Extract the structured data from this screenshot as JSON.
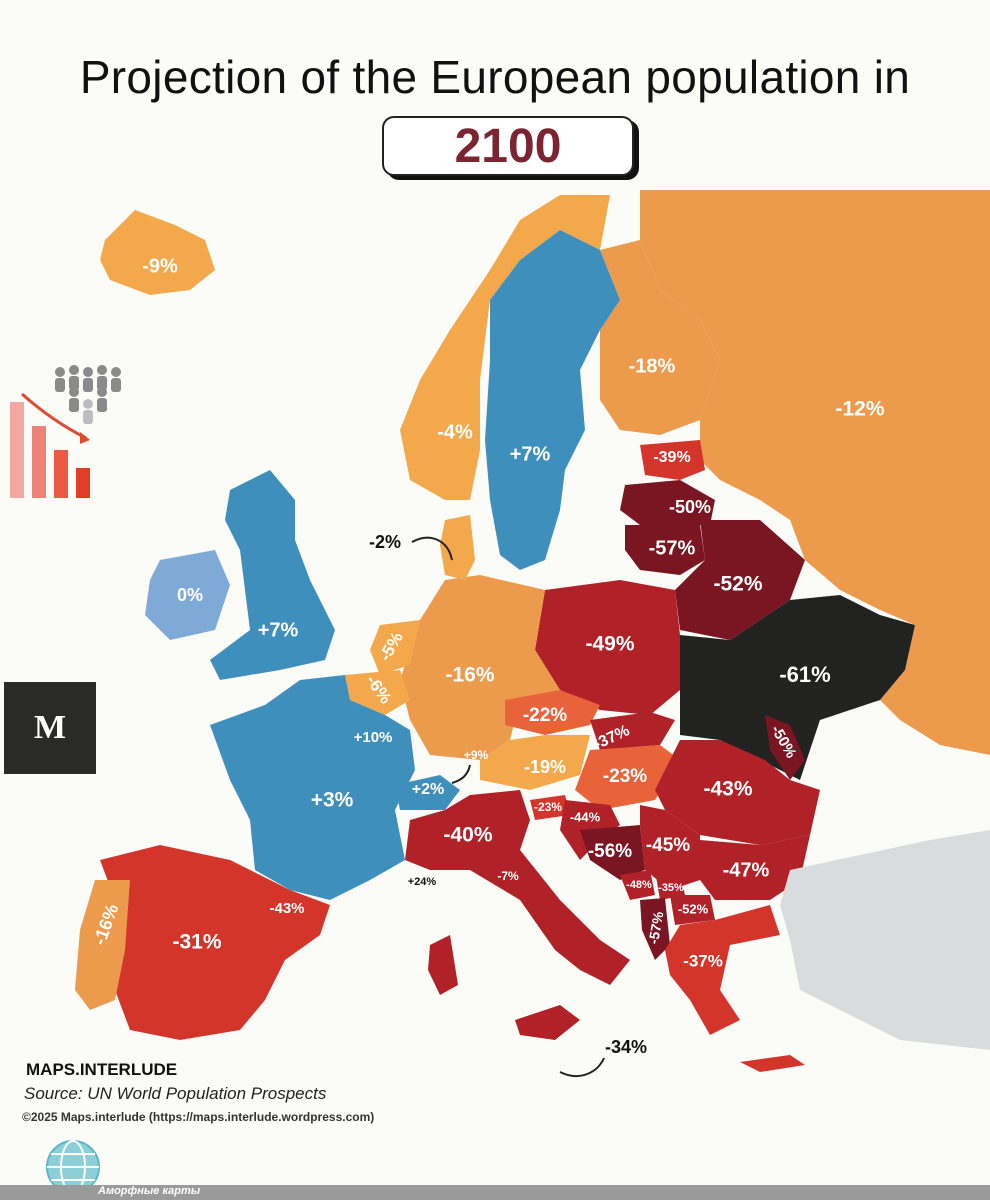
{
  "header": {
    "title": "Projection of the European population in",
    "year": "2100"
  },
  "colors": {
    "sea": "#fbfbf8",
    "blue_strong": "#3f8fbd",
    "blue_light": "#7fa9d6",
    "yellow_orange": "#f3a94b",
    "orange": "#ec9a4c",
    "orange_red": "#e8633a",
    "red": "#d4352a",
    "dark_red": "#b02128",
    "maroon": "#7a1522",
    "black": "#222220",
    "gray": "#d9dcdc"
  },
  "regions": [
    {
      "id": "iceland",
      "label": "-9%",
      "value": -9
    },
    {
      "id": "norway",
      "label": "-4%",
      "value": -4
    },
    {
      "id": "sweden",
      "label": "+7%",
      "value": 7
    },
    {
      "id": "finland",
      "label": "-18%",
      "value": -18
    },
    {
      "id": "russia",
      "label": "-12%",
      "value": -12
    },
    {
      "id": "estonia",
      "label": "-39%",
      "value": -39
    },
    {
      "id": "latvia",
      "label": "-50%",
      "value": -50
    },
    {
      "id": "lithuania",
      "label": "-57%",
      "value": -57
    },
    {
      "id": "belarus",
      "label": "-52%",
      "value": -52
    },
    {
      "id": "ukraine",
      "label": "-61%",
      "value": -61
    },
    {
      "id": "moldova",
      "label": "-50%",
      "value": -50
    },
    {
      "id": "poland",
      "label": "-49%",
      "value": -49
    },
    {
      "id": "denmark",
      "label": "-2%",
      "value": -2
    },
    {
      "id": "ireland",
      "label": "0%",
      "value": 0
    },
    {
      "id": "uk",
      "label": "+7%",
      "value": 7
    },
    {
      "id": "netherlands",
      "label": "-5%",
      "value": -5
    },
    {
      "id": "belgium",
      "label": "-6%",
      "value": -6
    },
    {
      "id": "luxembourg",
      "label": "+10%",
      "value": 10
    },
    {
      "id": "germany",
      "label": "-16%",
      "value": -16
    },
    {
      "id": "czechia",
      "label": "-22%",
      "value": -22
    },
    {
      "id": "slovakia",
      "label": "-37%",
      "value": -37
    },
    {
      "id": "austria",
      "label": "-19%",
      "value": -19
    },
    {
      "id": "liechtenstein",
      "label": "+9%",
      "value": 9
    },
    {
      "id": "switzerland",
      "label": "+2%",
      "value": 2
    },
    {
      "id": "hungary",
      "label": "-23%",
      "value": -23
    },
    {
      "id": "romania",
      "label": "-43%",
      "value": -43
    },
    {
      "id": "france",
      "label": "+3%",
      "value": 3
    },
    {
      "id": "italy",
      "label": "-40%",
      "value": -40
    },
    {
      "id": "monaco",
      "label": "+24%",
      "value": 24
    },
    {
      "id": "san_marino",
      "label": "-7%",
      "value": -7
    },
    {
      "id": "slovenia",
      "label": "-23%",
      "value": -23
    },
    {
      "id": "croatia",
      "label": "-44%",
      "value": -44
    },
    {
      "id": "bosnia",
      "label": "-56%",
      "value": -56
    },
    {
      "id": "serbia",
      "label": "-45%",
      "value": -45
    },
    {
      "id": "bulgaria",
      "label": "-47%",
      "value": -47
    },
    {
      "id": "montenegro",
      "label": "-48%",
      "value": -48
    },
    {
      "id": "kosovo",
      "label": "-35%",
      "value": -35
    },
    {
      "id": "north_macedonia",
      "label": "-52%",
      "value": -52
    },
    {
      "id": "albania",
      "label": "-57%",
      "value": -57
    },
    {
      "id": "greece",
      "label": "-37%",
      "value": -37
    },
    {
      "id": "spain",
      "label": "-31%",
      "value": -31
    },
    {
      "id": "portugal",
      "label": "-16%",
      "value": -16
    },
    {
      "id": "andorra",
      "label": "-43%",
      "value": -43
    },
    {
      "id": "malta",
      "label": "-34%",
      "value": -34
    }
  ],
  "sidebar": {
    "logo_letter": "M"
  },
  "footer": {
    "brand": "MAPS.INTERLUDE",
    "source": "Source: UN World Population Prospects",
    "copyright": "©2025 Maps.interlude (https://maps.interlude.wordpress.com)",
    "watermark": "Аморфные карты"
  }
}
